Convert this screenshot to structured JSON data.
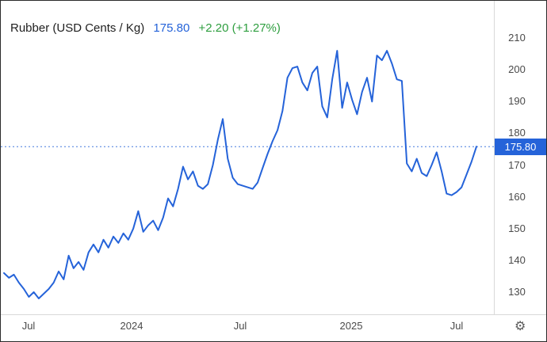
{
  "header": {
    "title": "Rubber (USD Cents / Kg)",
    "value": "175.80",
    "change": "+2.20 (+1.27%)"
  },
  "price_badge": {
    "label": "175.80"
  },
  "footer": {
    "gear_icon": "⚙"
  },
  "colors": {
    "line": "#2563d9",
    "value_text": "#2563d9",
    "change_up": "#2e9e3f",
    "badge_bg": "#2563d9",
    "axis_line": "#d9d9d9",
    "tick_text": "#4a4a4a"
  },
  "chart_data": {
    "type": "line",
    "title": "Rubber (USD Cents / Kg)",
    "current_value": 175.8,
    "change": "+2.20",
    "change_pct": "+1.27%",
    "legend_position": "none",
    "grid": "off",
    "x_tick_labels": [
      "Jul",
      "2024",
      "Jul",
      "2025",
      "Jul"
    ],
    "x_range_note": "Jul 2023 through early Aug 2025, points evenly spaced in time",
    "y_ticks": [
      130,
      140,
      150,
      160,
      170,
      180,
      190,
      200,
      210
    ],
    "ylim": [
      124,
      214
    ],
    "series": [
      {
        "name": "Rubber (USD Cents / Kg)",
        "values": [
          136,
          134.5,
          135.5,
          133,
          131,
          128.5,
          130,
          128,
          129.5,
          131,
          133,
          136.5,
          134,
          141.5,
          137.5,
          139.5,
          137,
          142.5,
          145,
          142.5,
          146.5,
          144,
          147.5,
          145.5,
          148.5,
          146.5,
          150,
          155.5,
          149,
          151,
          152.5,
          149.5,
          153.5,
          159.5,
          157,
          162.5,
          169.5,
          165.5,
          168,
          163.5,
          162.5,
          164,
          170,
          178,
          184.5,
          172,
          166,
          164,
          163.5,
          163,
          162.5,
          164.5,
          169,
          173.5,
          177.5,
          181,
          187,
          197.5,
          200.5,
          201,
          196,
          193.5,
          199,
          201,
          188.5,
          185,
          197,
          206,
          188,
          196,
          190.5,
          186,
          193,
          197.5,
          190,
          204.5,
          203,
          206,
          202,
          197,
          196.5,
          170.5,
          168,
          172,
          167.5,
          166.5,
          170,
          174,
          168,
          161,
          160.5,
          161.5,
          163,
          167,
          171,
          175.8
        ]
      }
    ],
    "annotations": [
      {
        "type": "horizontal-dotted-line",
        "value": 175.8,
        "label": "175.80"
      }
    ]
  }
}
